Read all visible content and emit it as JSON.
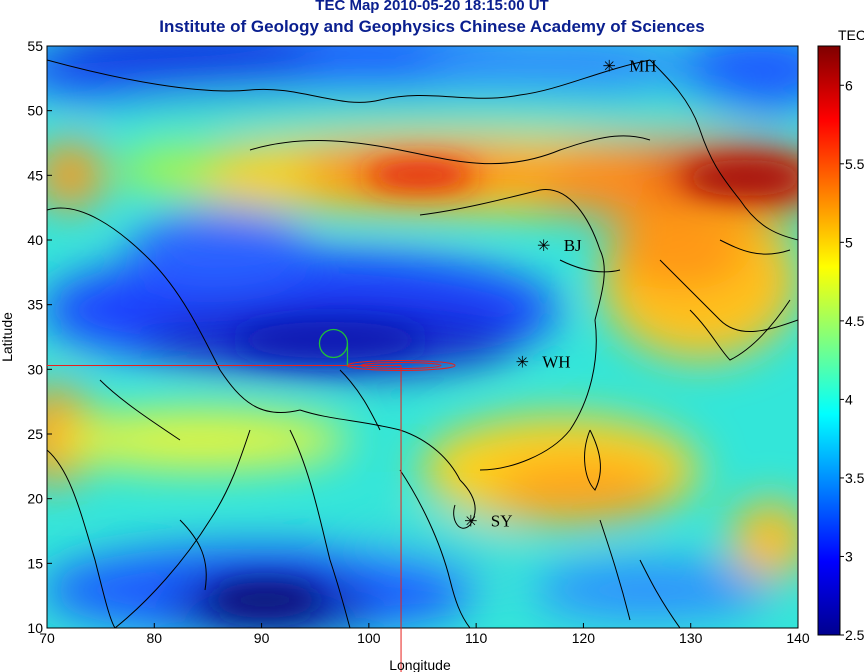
{
  "title": {
    "line1": "TEC Map 2010-05-20 18:15:00 UT",
    "line2": "Institute of Geology and Geophysics Chinese Academy of Sciences"
  },
  "map": {
    "lon_range": [
      70,
      140
    ],
    "lat_range": [
      10,
      55
    ],
    "x_axis_label": "Longitude",
    "y_axis_label": "Latitude",
    "x_ticks": [
      "70",
      "80",
      "90",
      "100",
      "110",
      "120",
      "130",
      "140"
    ],
    "y_ticks": [
      "10",
      "15",
      "20",
      "25",
      "30",
      "35",
      "40",
      "45",
      "50",
      "55"
    ],
    "colors": {
      "title": "#0a1f8f",
      "crosshair": "#e8201c",
      "marker_circle": "#1fbf3a",
      "coastline": "#000000"
    }
  },
  "colorbar": {
    "title": "TEC",
    "range": [
      2.5,
      6.25
    ],
    "labels": [
      "6",
      "5.5",
      "5",
      "4.5",
      "4",
      "3.5",
      "3",
      "2.5"
    ],
    "colormap": "jet"
  },
  "stations": [
    {
      "name": "MH",
      "lon": 122.4,
      "lat": 53.5
    },
    {
      "name": "BJ",
      "lon": 116.3,
      "lat": 39.6
    },
    {
      "name": "WH",
      "lon": 114.3,
      "lat": 30.6
    },
    {
      "name": "SY",
      "lon": 109.5,
      "lat": 18.3
    }
  ],
  "marker": {
    "crosshair_lon": 103.0,
    "crosshair_lat": 30.3,
    "circle_center_lon": 96.7,
    "circle_center_lat": 32.0
  }
}
